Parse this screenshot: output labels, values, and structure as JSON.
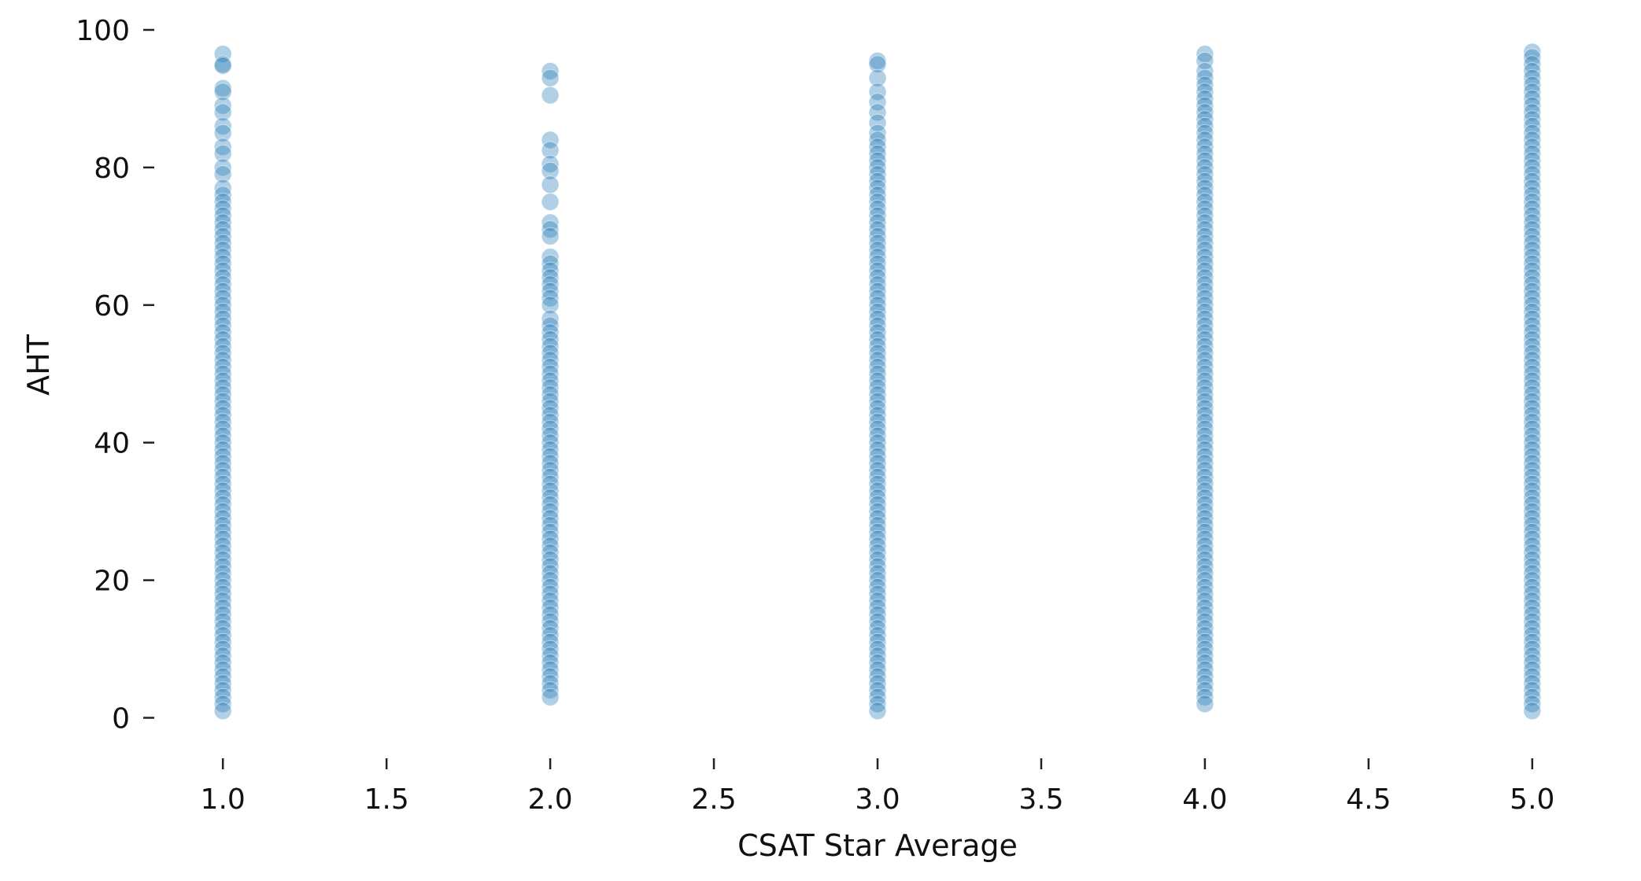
{
  "chart_data": {
    "type": "scatter",
    "title": "",
    "xlabel": "CSAT Star Average",
    "ylabel": "AHT",
    "xlim": [
      0.8,
      5.2
    ],
    "ylim": [
      -2,
      100
    ],
    "x_ticks": [
      1.0,
      1.5,
      2.0,
      2.5,
      3.0,
      3.5,
      4.0,
      4.5,
      5.0
    ],
    "x_tick_labels": [
      "1.0",
      "1.5",
      "2.0",
      "2.5",
      "3.0",
      "3.5",
      "4.0",
      "4.5",
      "5.0"
    ],
    "y_ticks": [
      0,
      20,
      40,
      60,
      80,
      100
    ],
    "y_tick_labels": [
      "0",
      "20",
      "40",
      "60",
      "80",
      "100"
    ],
    "grid": false,
    "legend": "none",
    "marker_color": "#1f77b4",
    "marker_alpha": 0.35,
    "series": [
      {
        "x_categories": [
          1.0,
          2.0,
          3.0,
          4.0,
          5.0
        ],
        "points": {
          "1.0": [
            96.5,
            95.0,
            94.8,
            91.5,
            91.0,
            89.0,
            88.0,
            86.0,
            85.0,
            83.0,
            82.0,
            80.0,
            79.0,
            77.0,
            76.0,
            75.0,
            74.0,
            73.0,
            72.0,
            71.0,
            70.0,
            69.0,
            68.0,
            67.0,
            66.0,
            65.0,
            64.0,
            63.0,
            62.0,
            61.0,
            60.0,
            59.0,
            58.0,
            57.0,
            56.0,
            55.0,
            54.0,
            53.0,
            52.0,
            51.0,
            50.0,
            49.0,
            48.0,
            47.0,
            46.0,
            45.0,
            44.0,
            43.0,
            42.0,
            41.0,
            40.0,
            39.0,
            38.0,
            37.0,
            36.0,
            35.0,
            34.0,
            33.0,
            32.0,
            31.0,
            30.0,
            29.0,
            28.0,
            27.0,
            26.0,
            25.0,
            24.0,
            23.0,
            22.0,
            21.0,
            20.0,
            19.0,
            18.0,
            17.0,
            16.0,
            15.0,
            14.0,
            13.0,
            12.0,
            11.0,
            10.0,
            9.0,
            8.0,
            7.0,
            6.0,
            5.0,
            4.0,
            3.0,
            2.0,
            1.0
          ],
          "2.0": [
            94.0,
            93.0,
            90.5,
            84.0,
            82.5,
            80.5,
            79.5,
            77.5,
            75.0,
            72.0,
            71.0,
            70.0,
            67.0,
            66.0,
            65.0,
            64.0,
            63.0,
            62.0,
            61.0,
            60.0,
            58.0,
            57.0,
            56.0,
            55.0,
            54.0,
            53.0,
            52.0,
            51.0,
            50.0,
            49.0,
            48.0,
            47.0,
            46.0,
            45.0,
            44.0,
            43.0,
            42.0,
            41.0,
            40.0,
            39.0,
            38.0,
            37.0,
            36.0,
            35.0,
            34.0,
            33.0,
            32.0,
            31.0,
            30.0,
            29.0,
            28.0,
            27.0,
            26.0,
            25.0,
            24.0,
            23.0,
            22.0,
            21.0,
            20.0,
            19.0,
            18.0,
            17.0,
            16.0,
            15.0,
            14.0,
            13.0,
            12.0,
            11.0,
            10.0,
            9.0,
            8.0,
            7.0,
            6.0,
            5.0,
            4.0,
            3.0
          ],
          "3.0": [
            95.5,
            95.0,
            93.0,
            91.0,
            89.5,
            88.0,
            86.5,
            85.0,
            84.0,
            83.0,
            82.0,
            81.0,
            80.0,
            79.0,
            78.0,
            77.0,
            76.0,
            75.0,
            74.0,
            73.0,
            72.0,
            71.0,
            70.0,
            69.0,
            68.0,
            67.0,
            66.0,
            65.0,
            64.0,
            63.0,
            62.0,
            61.0,
            60.0,
            59.0,
            58.0,
            57.0,
            56.0,
            55.0,
            54.0,
            53.0,
            52.0,
            51.0,
            50.0,
            49.0,
            48.0,
            47.0,
            46.0,
            45.0,
            44.0,
            43.0,
            42.0,
            41.0,
            40.0,
            39.0,
            38.0,
            37.0,
            36.0,
            35.0,
            34.0,
            33.0,
            32.0,
            31.0,
            30.0,
            29.0,
            28.0,
            27.0,
            26.0,
            25.0,
            24.0,
            23.0,
            22.0,
            21.0,
            20.0,
            19.0,
            18.0,
            17.0,
            16.0,
            15.0,
            14.0,
            13.0,
            12.0,
            11.0,
            10.0,
            9.0,
            8.0,
            7.0,
            6.0,
            5.0,
            4.0,
            3.0,
            2.0,
            1.0
          ],
          "4.0": [
            96.5,
            95.5,
            94.0,
            93.0,
            92.0,
            91.0,
            90.0,
            89.0,
            88.0,
            87.0,
            86.0,
            85.0,
            84.0,
            83.0,
            82.0,
            81.0,
            80.0,
            79.0,
            78.0,
            77.0,
            76.0,
            75.0,
            74.0,
            73.0,
            72.0,
            71.0,
            70.0,
            69.0,
            68.0,
            67.0,
            66.0,
            65.0,
            64.0,
            63.0,
            62.0,
            61.0,
            60.0,
            59.0,
            58.0,
            57.0,
            56.0,
            55.0,
            54.0,
            53.0,
            52.0,
            51.0,
            50.0,
            49.0,
            48.0,
            47.0,
            46.0,
            45.0,
            44.0,
            43.0,
            42.0,
            41.0,
            40.0,
            39.0,
            38.0,
            37.0,
            36.0,
            35.0,
            34.0,
            33.0,
            32.0,
            31.0,
            30.0,
            29.0,
            28.0,
            27.0,
            26.0,
            25.0,
            24.0,
            23.0,
            22.0,
            21.0,
            20.0,
            19.0,
            18.0,
            17.0,
            16.0,
            15.0,
            14.0,
            13.0,
            12.0,
            11.0,
            10.0,
            9.0,
            8.0,
            7.0,
            6.0,
            5.0,
            4.0,
            3.0,
            2.0
          ],
          "5.0": [
            96.8,
            96.0,
            95.0,
            94.0,
            93.0,
            92.0,
            91.0,
            90.0,
            89.0,
            88.0,
            87.0,
            86.0,
            85.0,
            84.0,
            83.0,
            82.0,
            81.0,
            80.0,
            79.0,
            78.0,
            77.0,
            76.0,
            75.0,
            74.0,
            73.0,
            72.0,
            71.0,
            70.0,
            69.0,
            68.0,
            67.0,
            66.0,
            65.0,
            64.0,
            63.0,
            62.0,
            61.0,
            60.0,
            59.0,
            58.0,
            57.0,
            56.0,
            55.0,
            54.0,
            53.0,
            52.0,
            51.0,
            50.0,
            49.0,
            48.0,
            47.0,
            46.0,
            45.0,
            44.0,
            43.0,
            42.0,
            41.0,
            40.0,
            39.0,
            38.0,
            37.0,
            36.0,
            35.0,
            34.0,
            33.0,
            32.0,
            31.0,
            30.0,
            29.0,
            28.0,
            27.0,
            26.0,
            25.0,
            24.0,
            23.0,
            22.0,
            21.0,
            20.0,
            19.0,
            18.0,
            17.0,
            16.0,
            15.0,
            14.0,
            13.0,
            12.0,
            11.0,
            10.0,
            9.0,
            8.0,
            7.0,
            6.0,
            5.0,
            4.0,
            3.0,
            2.0,
            1.0
          ]
        }
      }
    ]
  }
}
